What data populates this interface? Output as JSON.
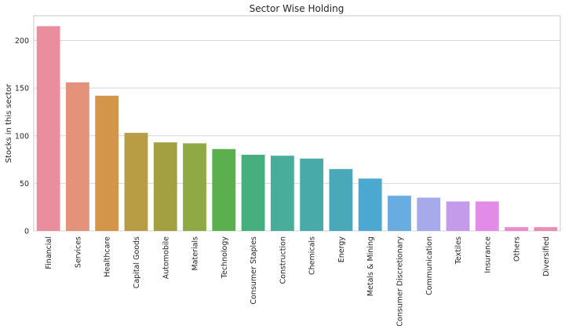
{
  "chart_data": {
    "type": "bar",
    "title": "Sector Wise Holding",
    "xlabel": "",
    "ylabel": "Stocks in this sector",
    "ylim": [
      0,
      226
    ],
    "yticks": [
      0,
      50,
      100,
      150,
      200
    ],
    "grid": "horizontal",
    "categories": [
      "Financial",
      "Services",
      "Healthcare",
      "Capital Goods",
      "Automobile",
      "Materials",
      "Technology",
      "Consumer Staples",
      "Construction",
      "Chemicals",
      "Energy",
      "Metals & Mining",
      "Consumer Discretionary",
      "Communication",
      "Textiles",
      "Insurance",
      "Others",
      "Diversified"
    ],
    "values": [
      215,
      156,
      142,
      103,
      93,
      92,
      86,
      80,
      79,
      76,
      65,
      55,
      37,
      35,
      31,
      31,
      4,
      4
    ],
    "colors": [
      "#ea8d9c",
      "#e5927a",
      "#d39549",
      "#b99d45",
      "#a3a042",
      "#8faa44",
      "#5caf4d",
      "#47ae7d",
      "#49ad9c",
      "#48aaa9",
      "#4aa9b9",
      "#4ba9d1",
      "#68ace2",
      "#a6aaea",
      "#c49aeb",
      "#e28ce8",
      "#ea8bd0",
      "#ec8db5"
    ]
  }
}
